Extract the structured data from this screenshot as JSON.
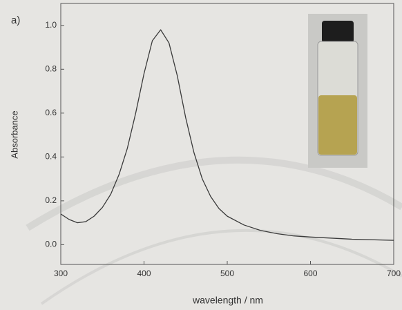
{
  "chart_data": {
    "type": "line",
    "panel_label": "a)",
    "xlabel": "wavelength / nm",
    "ylabel": "Absorbance",
    "x": [
      300,
      310,
      320,
      330,
      340,
      350,
      360,
      370,
      380,
      390,
      400,
      410,
      420,
      430,
      440,
      450,
      460,
      470,
      480,
      490,
      500,
      520,
      540,
      560,
      580,
      600,
      650,
      700
    ],
    "values": [
      0.14,
      0.115,
      0.1,
      0.105,
      0.13,
      0.17,
      0.23,
      0.32,
      0.44,
      0.6,
      0.78,
      0.93,
      0.98,
      0.92,
      0.77,
      0.58,
      0.42,
      0.3,
      0.22,
      0.165,
      0.13,
      0.09,
      0.065,
      0.05,
      0.04,
      0.035,
      0.025,
      0.02
    ],
    "color": "#3a3a3a",
    "xlim": [
      300,
      700
    ],
    "ylim": [
      -0.09,
      1.1
    ],
    "xticks": [
      300,
      400,
      500,
      600,
      700
    ],
    "yticks": [
      {
        "value": 0,
        "label": "0.0"
      },
      0.2,
      0.4,
      0.6,
      0.8,
      {
        "value": 1,
        "label": "1.0"
      }
    ]
  }
}
